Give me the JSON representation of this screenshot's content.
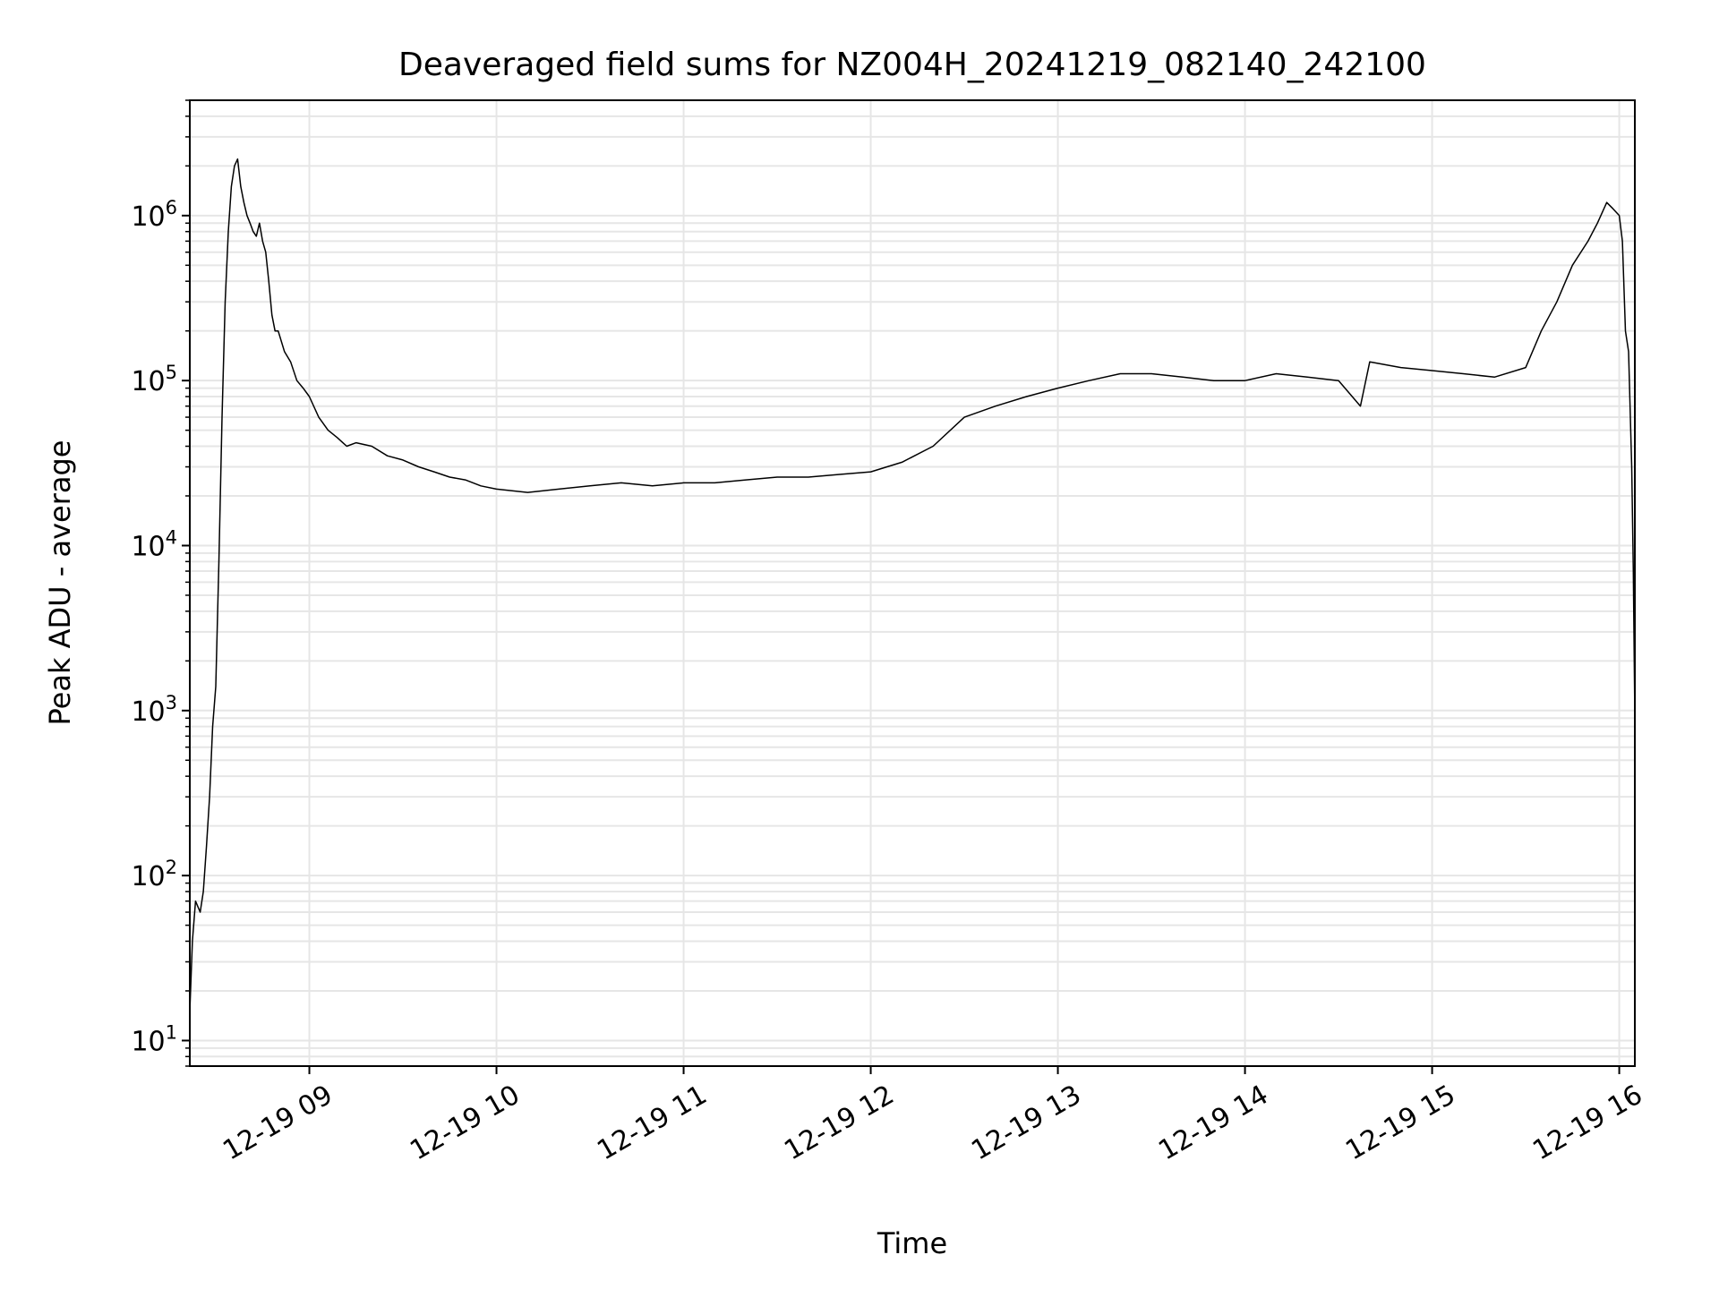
{
  "chart_data": {
    "type": "line",
    "title": "Deaveraged field sums for NZ004H_20241219_082140_242100",
    "xlabel": "Time",
    "ylabel": "Peak ADU - average",
    "yscale": "log",
    "grid": true,
    "legend": "none",
    "xlim": [
      "2024-12-19 08:21:40",
      "2024-12-19 16:05:00"
    ],
    "ylim": [
      7,
      5000000
    ],
    "x_ticks": [
      {
        "value": "2024-12-19 09:00",
        "label": "12-19 09"
      },
      {
        "value": "2024-12-19 10:00",
        "label": "12-19 10"
      },
      {
        "value": "2024-12-19 11:00",
        "label": "12-19 11"
      },
      {
        "value": "2024-12-19 12:00",
        "label": "12-19 12"
      },
      {
        "value": "2024-12-19 13:00",
        "label": "12-19 13"
      },
      {
        "value": "2024-12-19 14:00",
        "label": "12-19 14"
      },
      {
        "value": "2024-12-19 15:00",
        "label": "12-19 15"
      },
      {
        "value": "2024-12-19 16:00",
        "label": "12-19 16"
      }
    ],
    "y_ticks": [
      {
        "value": 10,
        "base": "10",
        "exp": "1"
      },
      {
        "value": 100,
        "base": "10",
        "exp": "2"
      },
      {
        "value": 1000,
        "base": "10",
        "exp": "3"
      },
      {
        "value": 10000,
        "base": "10",
        "exp": "4"
      },
      {
        "value": 100000,
        "base": "10",
        "exp": "5"
      },
      {
        "value": 1000000,
        "base": "10",
        "exp": "6"
      }
    ],
    "line_color": "#000000",
    "series": [
      {
        "x": [
          "2024-12-19 08:21:40",
          "2024-12-19 08:22:30",
          "2024-12-19 08:23:30",
          "2024-12-19 08:25:00",
          "2024-12-19 08:26:00",
          "2024-12-19 08:27:00",
          "2024-12-19 08:28:00",
          "2024-12-19 08:29:00",
          "2024-12-19 08:30:00",
          "2024-12-19 08:31:00",
          "2024-12-19 08:32:00",
          "2024-12-19 08:33:00",
          "2024-12-19 08:34:00",
          "2024-12-19 08:35:00",
          "2024-12-19 08:36:00",
          "2024-12-19 08:37:00",
          "2024-12-19 08:38:00",
          "2024-12-19 08:39:00",
          "2024-12-19 08:40:00",
          "2024-12-19 08:41:00",
          "2024-12-19 08:42:00",
          "2024-12-19 08:43:00",
          "2024-12-19 08:44:00",
          "2024-12-19 08:45:00",
          "2024-12-19 08:46:00",
          "2024-12-19 08:47:00",
          "2024-12-19 08:48:00",
          "2024-12-19 08:49:00",
          "2024-12-19 08:50:00",
          "2024-12-19 08:52:00",
          "2024-12-19 08:54:00",
          "2024-12-19 08:56:00",
          "2024-12-19 08:58:00",
          "2024-12-19 09:00:00",
          "2024-12-19 09:03:00",
          "2024-12-19 09:06:00",
          "2024-12-19 09:09:00",
          "2024-12-19 09:12:00",
          "2024-12-19 09:15:00",
          "2024-12-19 09:20:00",
          "2024-12-19 09:25:00",
          "2024-12-19 09:30:00",
          "2024-12-19 09:35:00",
          "2024-12-19 09:40:00",
          "2024-12-19 09:45:00",
          "2024-12-19 09:50:00",
          "2024-12-19 09:55:00",
          "2024-12-19 10:00:00",
          "2024-12-19 10:10:00",
          "2024-12-19 10:20:00",
          "2024-12-19 10:30:00",
          "2024-12-19 10:40:00",
          "2024-12-19 10:50:00",
          "2024-12-19 11:00:00",
          "2024-12-19 11:10:00",
          "2024-12-19 11:20:00",
          "2024-12-19 11:30:00",
          "2024-12-19 11:40:00",
          "2024-12-19 11:50:00",
          "2024-12-19 12:00:00",
          "2024-12-19 12:10:00",
          "2024-12-19 12:20:00",
          "2024-12-19 12:30:00",
          "2024-12-19 12:40:00",
          "2024-12-19 12:50:00",
          "2024-12-19 13:00:00",
          "2024-12-19 13:10:00",
          "2024-12-19 13:20:00",
          "2024-12-19 13:30:00",
          "2024-12-19 13:40:00",
          "2024-12-19 13:50:00",
          "2024-12-19 14:00:00",
          "2024-12-19 14:10:00",
          "2024-12-19 14:20:00",
          "2024-12-19 14:30:00",
          "2024-12-19 14:37:00",
          "2024-12-19 14:40:00",
          "2024-12-19 14:50:00",
          "2024-12-19 15:00:00",
          "2024-12-19 15:10:00",
          "2024-12-19 15:20:00",
          "2024-12-19 15:30:00",
          "2024-12-19 15:35:00",
          "2024-12-19 15:40:00",
          "2024-12-19 15:45:00",
          "2024-12-19 15:50:00",
          "2024-12-19 15:53:00",
          "2024-12-19 15:56:00",
          "2024-12-19 15:58:00",
          "2024-12-19 16:00:00",
          "2024-12-19 16:01:00",
          "2024-12-19 16:02:00",
          "2024-12-19 16:03:00",
          "2024-12-19 16:04:00",
          "2024-12-19 16:04:30",
          "2024-12-19 16:05:00"
        ],
        "y": [
          15,
          40,
          70,
          60,
          80,
          150,
          300,
          800,
          1400,
          8000,
          60000,
          300000,
          800000,
          1500000,
          2000000,
          2200000,
          1500000,
          1200000,
          1000000,
          900000,
          800000,
          750000,
          900000,
          700000,
          600000,
          400000,
          250000,
          200000,
          200000,
          150000,
          130000,
          100000,
          90000,
          80000,
          60000,
          50000,
          45000,
          40000,
          42000,
          40000,
          35000,
          33000,
          30000,
          28000,
          26000,
          25000,
          23000,
          22000,
          21000,
          22000,
          23000,
          24000,
          23000,
          24000,
          24000,
          25000,
          26000,
          26000,
          27000,
          28000,
          32000,
          40000,
          60000,
          70000,
          80000,
          90000,
          100000,
          110000,
          110000,
          105000,
          100000,
          100000,
          110000,
          105000,
          100000,
          70000,
          130000,
          120000,
          115000,
          110000,
          105000,
          120000,
          200000,
          300000,
          500000,
          700000,
          900000,
          1200000,
          1100000,
          1000000,
          700000,
          200000,
          150000,
          30000,
          7000,
          900
        ]
      }
    ]
  }
}
